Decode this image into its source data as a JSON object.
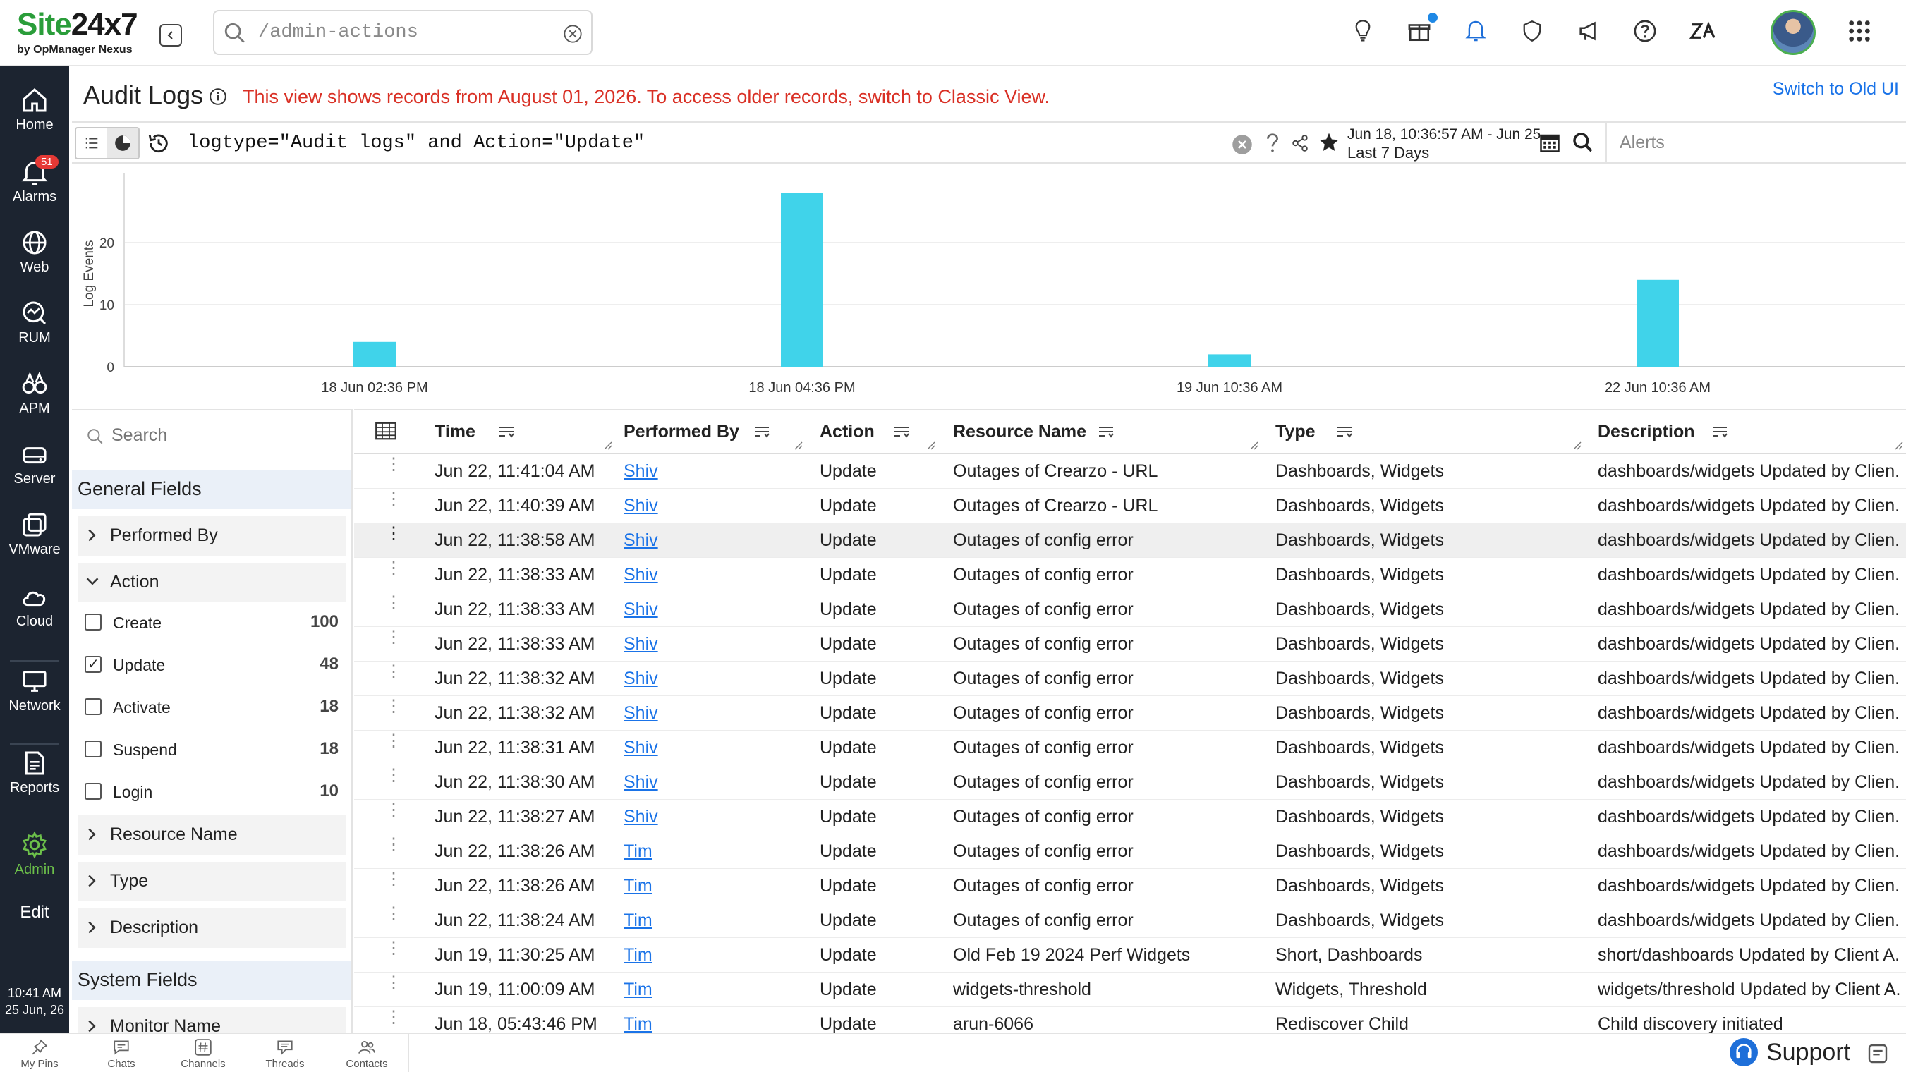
{
  "brand": {
    "name_part1": "Site",
    "name_part2": "24x7",
    "tagline": "by OpManager Nexus"
  },
  "search": {
    "value": "/admin-actions",
    "placeholder": "/admin-actions"
  },
  "nav": {
    "items": [
      {
        "label": "Home",
        "icon": "home-icon"
      },
      {
        "label": "Alarms",
        "icon": "bell-icon",
        "badge": "51"
      },
      {
        "label": "Web",
        "icon": "globe-icon"
      },
      {
        "label": "RUM",
        "icon": "rum-icon"
      },
      {
        "label": "APM",
        "icon": "binoculars-icon"
      },
      {
        "label": "Server",
        "icon": "server-icon"
      },
      {
        "label": "VMware",
        "icon": "vmware-icon"
      },
      {
        "label": "Cloud",
        "icon": "cloud-icon"
      },
      {
        "label": "Network",
        "icon": "monitor-icon"
      },
      {
        "label": "Reports",
        "icon": "report-icon"
      },
      {
        "label": "Admin",
        "icon": "gear-icon"
      },
      {
        "label": "Edit",
        "icon": ""
      }
    ],
    "clock_time": "10:41 AM",
    "clock_date": "25 Jun, 26",
    "active_color": "#6cc04a"
  },
  "page": {
    "title": "Audit Logs",
    "notice": "This view shows records from August 01, 2026. To access older records, switch to Classic View.",
    "switch_link": "Switch to Old UI"
  },
  "query": {
    "text": "logtype=\"Audit logs\" and Action=\"Update\"",
    "date_range": "Jun 18, 10:36:57 AM - Jun 25...",
    "date_preset": "Last 7 Days",
    "alerts_placeholder": "Alerts"
  },
  "chart_data": {
    "type": "bar",
    "ylabel": "Log Events",
    "xlabel": "",
    "ylim": [
      0,
      30
    ],
    "yticks": [
      0,
      10,
      20
    ],
    "x_tick_labels": [
      "18 Jun 02:36 PM",
      "18 Jun 04:36 PM",
      "19 Jun 10:36 AM",
      "22 Jun 10:36 AM"
    ],
    "bars": [
      {
        "x_label": "18 Jun 02:36 PM",
        "value": 4
      },
      {
        "x_label": "18 Jun 04:36 PM",
        "value": 28
      },
      {
        "x_label": "19 Jun 10:36 AM",
        "value": 2
      },
      {
        "x_label": "22 Jun 10:36 AM",
        "value": 14
      }
    ],
    "bar_color": "#40d3ea",
    "grid": true
  },
  "fields": {
    "search_placeholder": "Search",
    "general_title": "General Fields",
    "performed_by": "Performed By",
    "action": "Action",
    "options": [
      {
        "label": "Create",
        "count": "100",
        "checked": false
      },
      {
        "label": "Update",
        "count": "48",
        "checked": true
      },
      {
        "label": "Activate",
        "count": "18",
        "checked": false
      },
      {
        "label": "Suspend",
        "count": "18",
        "checked": false
      },
      {
        "label": "Login",
        "count": "10",
        "checked": false
      }
    ],
    "resource_name": "Resource Name",
    "type": "Type",
    "description": "Description",
    "system_title": "System Fields",
    "monitor_name": "Monitor Name"
  },
  "table": {
    "columns": [
      "Time",
      "Performed By",
      "Action",
      "Resource Name",
      "Type",
      "Description"
    ],
    "rows": [
      [
        "Jun 22, 11:41:04 AM",
        "Shiv",
        "Update",
        "Outages of Crearzo - URL",
        "Dashboards, Widgets",
        "dashboards/widgets Updated by Clien..."
      ],
      [
        "Jun 22, 11:40:39 AM",
        "Shiv",
        "Update",
        "Outages of Crearzo - URL",
        "Dashboards, Widgets",
        "dashboards/widgets Updated by Clien..."
      ],
      [
        "Jun 22, 11:38:58 AM",
        "Shiv",
        "Update",
        "Outages of config error",
        "Dashboards, Widgets",
        "dashboards/widgets Updated by Clien..."
      ],
      [
        "Jun 22, 11:38:33 AM",
        "Shiv",
        "Update",
        "Outages of config error",
        "Dashboards, Widgets",
        "dashboards/widgets Updated by Clien..."
      ],
      [
        "Jun 22, 11:38:33 AM",
        "Shiv",
        "Update",
        "Outages of config error",
        "Dashboards, Widgets",
        "dashboards/widgets Updated by Clien..."
      ],
      [
        "Jun 22, 11:38:33 AM",
        "Shiv",
        "Update",
        "Outages of config error",
        "Dashboards, Widgets",
        "dashboards/widgets Updated by Clien..."
      ],
      [
        "Jun 22, 11:38:32 AM",
        "Shiv",
        "Update",
        "Outages of config error",
        "Dashboards, Widgets",
        "dashboards/widgets Updated by Clien..."
      ],
      [
        "Jun 22, 11:38:32 AM",
        "Shiv",
        "Update",
        "Outages of config error",
        "Dashboards, Widgets",
        "dashboards/widgets Updated by Clien..."
      ],
      [
        "Jun 22, 11:38:31 AM",
        "Shiv",
        "Update",
        "Outages of config error",
        "Dashboards, Widgets",
        "dashboards/widgets Updated by Clien..."
      ],
      [
        "Jun 22, 11:38:30 AM",
        "Shiv",
        "Update",
        "Outages of config error",
        "Dashboards, Widgets",
        "dashboards/widgets Updated by Clien..."
      ],
      [
        "Jun 22, 11:38:27 AM",
        "Shiv",
        "Update",
        "Outages of config error",
        "Dashboards, Widgets",
        "dashboards/widgets Updated by Clien..."
      ],
      [
        "Jun 22, 11:38:26 AM",
        "Tim",
        "Update",
        "Outages of config error",
        "Dashboards, Widgets",
        "dashboards/widgets Updated by Clien..."
      ],
      [
        "Jun 22, 11:38:26 AM",
        "Tim",
        "Update",
        "Outages of config error",
        "Dashboards, Widgets",
        "dashboards/widgets Updated by Clien..."
      ],
      [
        "Jun 22, 11:38:24 AM",
        "Tim",
        "Update",
        "Outages of config error",
        "Dashboards, Widgets",
        "dashboards/widgets Updated by Clien..."
      ],
      [
        "Jun 19, 11:30:25 AM",
        "Tim",
        "Update",
        "Old Feb 19 2024 Perf Widgets",
        "Short, Dashboards",
        "short/dashboards Updated by Client A..."
      ],
      [
        "Jun 19, 11:00:09 AM",
        "Tim",
        "Update",
        "widgets-threshold",
        "Widgets, Threshold",
        "widgets/threshold Updated by Client A..."
      ],
      [
        "Jun 18, 05:43:46 PM",
        "Tim",
        "Update",
        "arun-6066",
        "Rediscover Child",
        "Child discovery initiated"
      ]
    ],
    "highlighted_row": 2
  },
  "bottom": {
    "items": [
      {
        "label": "My Pins",
        "icon": "pin-icon"
      },
      {
        "label": "Chats",
        "icon": "chat-icon"
      },
      {
        "label": "Channels",
        "icon": "hash-icon"
      },
      {
        "label": "Threads",
        "icon": "thread-icon"
      },
      {
        "label": "Contacts",
        "icon": "contacts-icon"
      }
    ],
    "support_label": "Support"
  },
  "colors": {
    "accent_red": "#d93025",
    "link_blue": "#1a73e8",
    "nav_bg": "#1c2430",
    "brand_green": "#2a9d3a"
  }
}
